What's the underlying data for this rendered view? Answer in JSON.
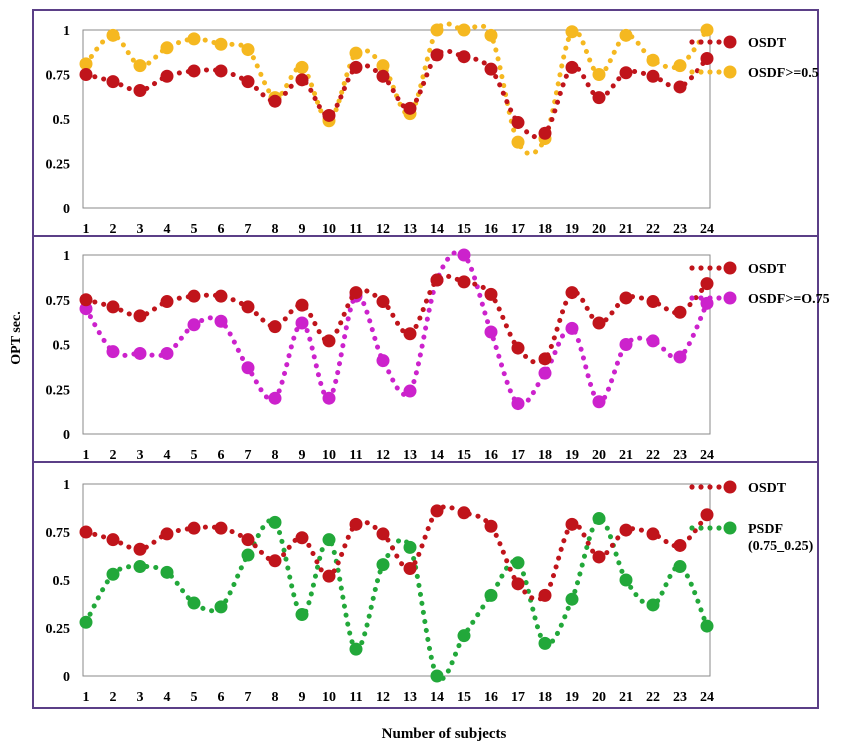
{
  "figure": {
    "ylabel": "OPT sec.",
    "xlabel": "Number of subjects"
  },
  "chart_data": [
    {
      "type": "scatter",
      "x": [
        1,
        2,
        3,
        4,
        5,
        6,
        7,
        8,
        9,
        10,
        11,
        12,
        13,
        14,
        15,
        16,
        17,
        18,
        19,
        20,
        21,
        22,
        23,
        24
      ],
      "ylim": [
        0,
        1
      ],
      "yticks": [
        "0",
        "0.25",
        "0.5",
        "0.75",
        "1"
      ],
      "grid": false,
      "legend": "right",
      "series": [
        {
          "name": "OSDT",
          "color": "#c0141b",
          "values": [
            0.75,
            0.71,
            0.66,
            0.74,
            0.77,
            0.77,
            0.71,
            0.6,
            0.72,
            0.52,
            0.79,
            0.74,
            0.56,
            0.86,
            0.85,
            0.78,
            0.48,
            0.42,
            0.79,
            0.62,
            0.76,
            0.74,
            0.68,
            0.84
          ]
        },
        {
          "name": "OSDF>=0.5",
          "color": "#f5b820",
          "values": [
            0.81,
            0.97,
            0.8,
            0.9,
            0.95,
            0.92,
            0.89,
            0.62,
            0.79,
            0.49,
            0.87,
            0.8,
            0.53,
            1.0,
            1.0,
            0.97,
            0.37,
            0.39,
            0.99,
            0.75,
            0.97,
            0.83,
            0.8,
            1.0
          ]
        }
      ]
    },
    {
      "type": "scatter",
      "x": [
        1,
        2,
        3,
        4,
        5,
        6,
        7,
        8,
        9,
        10,
        11,
        12,
        13,
        14,
        15,
        16,
        17,
        18,
        19,
        20,
        21,
        22,
        23,
        24
      ],
      "ylim": [
        0,
        1
      ],
      "yticks": [
        "0",
        "0.25",
        "0.5",
        "0.75",
        "1"
      ],
      "grid": false,
      "legend": "right",
      "series": [
        {
          "name": "OSDT",
          "color": "#c0141b",
          "values": [
            0.75,
            0.71,
            0.66,
            0.74,
            0.77,
            0.77,
            0.71,
            0.6,
            0.72,
            0.52,
            0.79,
            0.74,
            0.56,
            0.86,
            0.85,
            0.78,
            0.48,
            0.42,
            0.79,
            0.62,
            0.76,
            0.74,
            0.68,
            0.84
          ]
        },
        {
          "name": "OSDF>=O.75",
          "color": "#cc22cc",
          "values": [
            0.7,
            0.46,
            0.45,
            0.45,
            0.61,
            0.63,
            0.37,
            0.2,
            0.62,
            0.2,
            0.77,
            0.41,
            0.24,
            0.86,
            1.0,
            0.57,
            0.17,
            0.34,
            0.59,
            0.18,
            0.5,
            0.52,
            0.43,
            0.73
          ]
        }
      ]
    },
    {
      "type": "scatter",
      "x": [
        1,
        2,
        3,
        4,
        5,
        6,
        7,
        8,
        9,
        10,
        11,
        12,
        13,
        14,
        15,
        16,
        17,
        18,
        19,
        20,
        21,
        22,
        23,
        24
      ],
      "ylim": [
        0,
        1
      ],
      "yticks": [
        "0",
        "0.25",
        "0.5",
        "0.75",
        "1"
      ],
      "grid": false,
      "legend": "right",
      "series": [
        {
          "name": "OSDT",
          "color": "#c0141b",
          "values": [
            0.75,
            0.71,
            0.66,
            0.74,
            0.77,
            0.77,
            0.71,
            0.6,
            0.72,
            0.52,
            0.79,
            0.74,
            0.56,
            0.86,
            0.85,
            0.78,
            0.48,
            0.42,
            0.79,
            0.62,
            0.76,
            0.74,
            0.68,
            0.84
          ]
        },
        {
          "name": "PSDF (0.75_0.25)",
          "color": "#22a83a",
          "values": [
            0.28,
            0.53,
            0.57,
            0.54,
            0.38,
            0.36,
            0.63,
            0.8,
            0.32,
            0.71,
            0.14,
            0.58,
            0.67,
            0.0,
            0.21,
            0.42,
            0.59,
            0.17,
            0.4,
            0.82,
            0.5,
            0.37,
            0.57,
            0.26
          ]
        }
      ]
    }
  ]
}
